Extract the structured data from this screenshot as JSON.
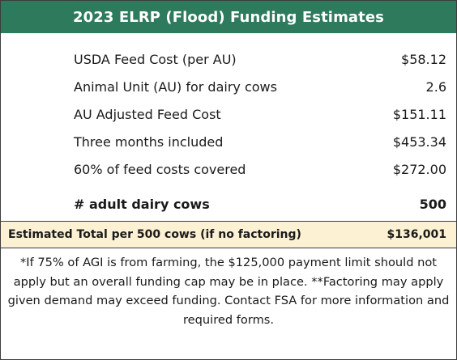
{
  "header": {
    "title": "2023 ELRP (Flood) Funding Estimates"
  },
  "rows": [
    {
      "label": "USDA Feed Cost (per AU)",
      "value": "$58.12"
    },
    {
      "label": "Animal Unit (AU) for dairy cows",
      "value": "2.6"
    },
    {
      "label": "AU Adjusted Feed Cost",
      "value": "$151.11"
    },
    {
      "label": "Three months included",
      "value": "$453.34"
    },
    {
      "label": "60% of feed costs covered",
      "value": "$272.00"
    }
  ],
  "cows": {
    "label": "# adult dairy cows",
    "value": "500"
  },
  "total": {
    "label": "Estimated Total per 500 cows (if no factoring)",
    "value": "$136,001"
  },
  "footnote": "*If 75% of AGI is from farming, the $125,000 payment limit should not apply but an overall funding cap may be in place. **Factoring may apply given demand may exceed funding. Contact FSA for more information and required forms.",
  "colors": {
    "header_bg": "#2e7a5d",
    "total_bg": "#fdf1d4"
  }
}
